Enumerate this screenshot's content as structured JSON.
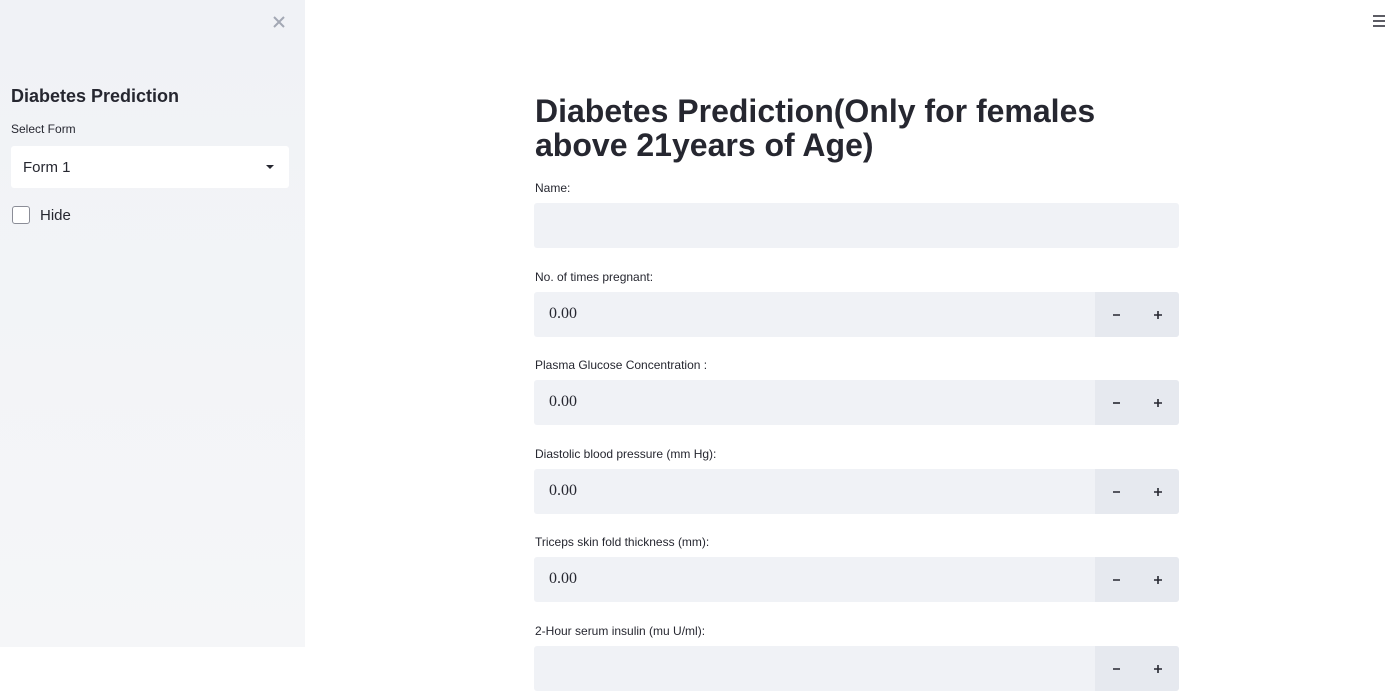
{
  "sidebar": {
    "title": "Diabetes Prediction",
    "select_label": "Select Form",
    "select_value": "Form 1",
    "checkbox_label": "Hide"
  },
  "main": {
    "title": "Diabetes Prediction(Only for females above 21years of Age)",
    "fields": [
      {
        "kind": "text",
        "label": "Name:"
      },
      {
        "kind": "number",
        "label": "No. of times pregnant:",
        "value": "0.00"
      },
      {
        "kind": "number",
        "label": "Plasma Glucose Concentration :",
        "value": "0.00"
      },
      {
        "kind": "number",
        "label": "Diastolic blood pressure (mm Hg):",
        "value": "0.00"
      },
      {
        "kind": "number",
        "label": "Triceps skin fold thickness (mm):",
        "value": "0.00"
      },
      {
        "kind": "number",
        "label": "2-Hour serum insulin (mu U/ml):"
      }
    ]
  }
}
